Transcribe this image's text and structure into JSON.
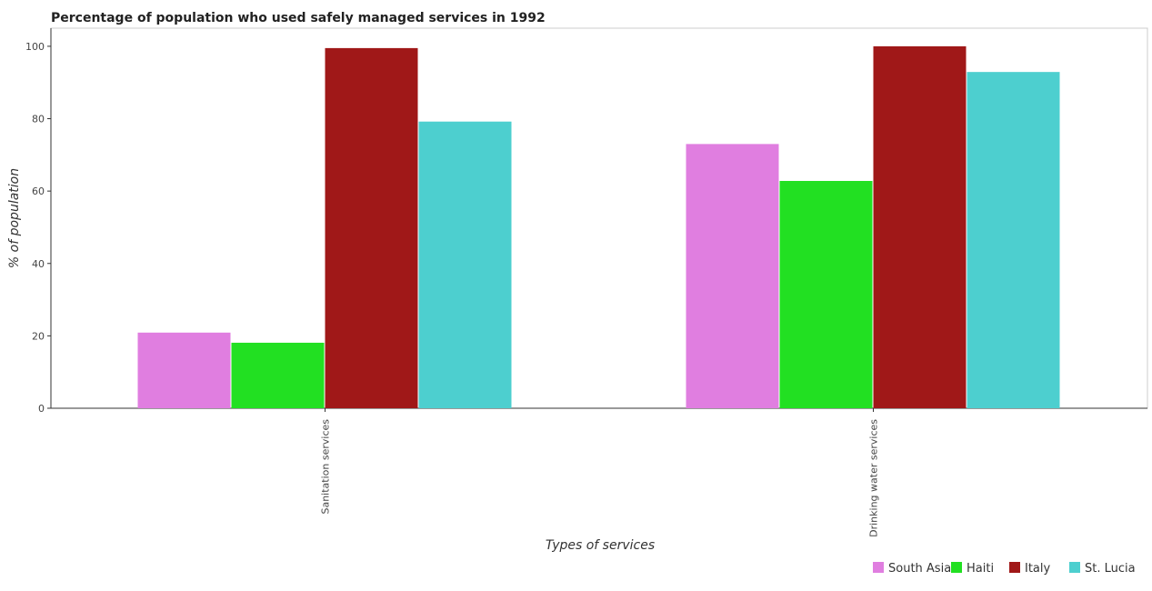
{
  "chart_data": {
    "type": "bar",
    "title": "Percentage of population who used safely managed services in 1992",
    "xlabel": "Types of services",
    "ylabel": "% of population",
    "categories": [
      "Sanitation services",
      "Drinking water services"
    ],
    "series": [
      {
        "name": "South Asia",
        "color": "#e07ee0",
        "values": [
          20.9,
          73.0
        ]
      },
      {
        "name": "Haiti",
        "color": "#22e022",
        "values": [
          18.1,
          62.8
        ]
      },
      {
        "name": "Italy",
        "color": "#a01818",
        "values": [
          99.5,
          100.0
        ]
      },
      {
        "name": "St. Lucia",
        "color": "#4dcfcf",
        "values": [
          79.2,
          92.9
        ]
      }
    ],
    "ylim": [
      0,
      105
    ],
    "yticks": [
      0,
      20,
      40,
      60,
      80,
      100
    ],
    "grid": false,
    "legend_position": "bottom-right"
  }
}
